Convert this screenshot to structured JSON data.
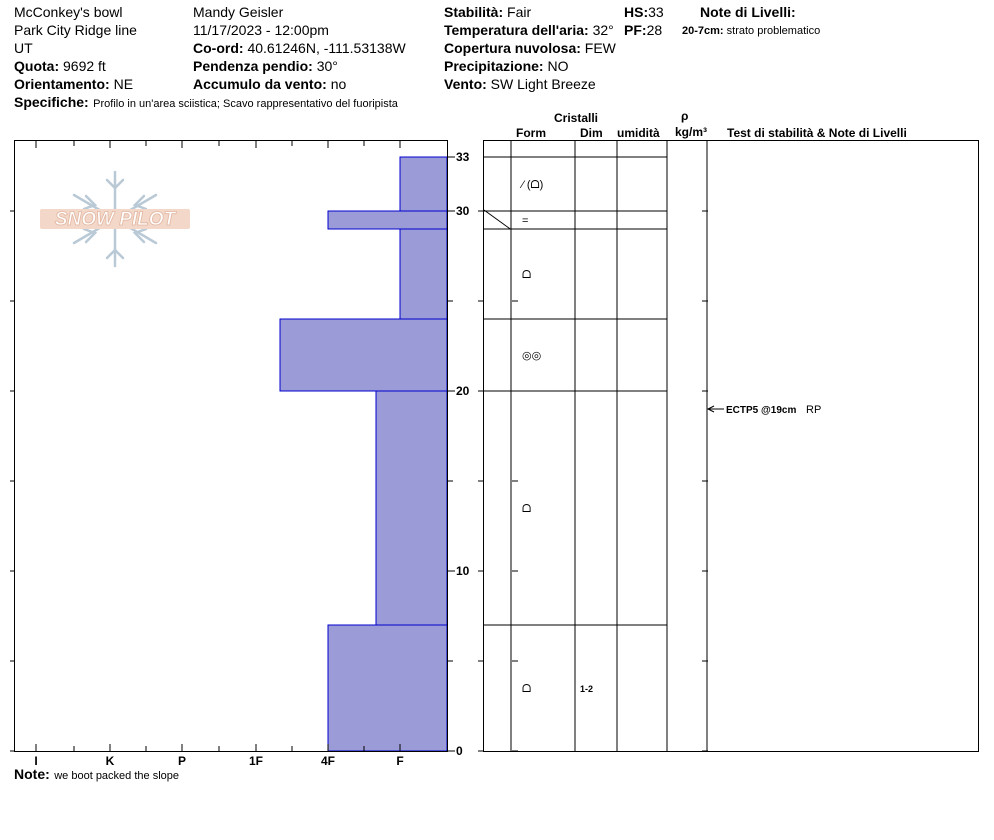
{
  "header": {
    "location": "McConkey's bowl",
    "area": "Park City Ridge line",
    "state": "UT",
    "quota_label": "Quota:",
    "quota_value": "9692 ft",
    "orientation_label": "Orientamento:",
    "orientation_value": "NE",
    "specifics_label": "Specifiche:",
    "specifics_value": "Profilo in un'area sciistica; Scavo rappresentativo del fuoripista",
    "observer": "Mandy Geisler",
    "datetime": "11/17/2023 - 12:00pm",
    "coord_label": "Co-ord:",
    "coord_value": "40.61246N, -111.53138W",
    "slope_label": "Pendenza pendio:",
    "slope_value": "30°",
    "wind_load_label": "Accumulo da vento:",
    "wind_load_value": "no",
    "stability_label": "Stabilità:",
    "stability_value": "Fair",
    "air_temp_label": "Temperatura dell'aria:",
    "air_temp_value": "32°",
    "cloud_label": "Copertura nuvolosa:",
    "cloud_value": "FEW",
    "precip_label": "Precipitazione:",
    "precip_value": "NO",
    "wind_label": "Vento:",
    "wind_value": "SW Light Breeze",
    "hs_label": "HS:",
    "hs_value": "33",
    "pf_label": "PF:",
    "pf_value": "28",
    "layer_notes_label": "Note di Livelli:",
    "layer_note_range": "20-7cm:",
    "layer_note_text": "strato problematico"
  },
  "columns": {
    "crystals": "Cristalli",
    "form": "Form",
    "size": "Dim",
    "humidity": "umidità",
    "density_symbol": "ρ",
    "density_unit": "kg/m³",
    "tests": "Test di stabilità & Note di Livelli"
  },
  "note_label": "Note:",
  "note_text": "we boot packed the slope",
  "watermark": "SNOW PILOT",
  "chart_data": {
    "type": "bar",
    "title": "",
    "ylabel": "",
    "ylim": [
      0,
      33
    ],
    "y_ticks": [
      0,
      10,
      20,
      30,
      33
    ],
    "hardness_ticks": [
      "I",
      "K",
      "P",
      "1F",
      "4F",
      "F"
    ],
    "hardness_layers": [
      {
        "bottom": 0,
        "top": 7,
        "hardness": "4F"
      },
      {
        "bottom": 7,
        "top": 20,
        "hardness": "F+"
      },
      {
        "bottom": 20,
        "top": 24,
        "hardness": "1F-"
      },
      {
        "bottom": 24,
        "top": 29,
        "hardness": "F-"
      },
      {
        "bottom": 29,
        "top": 30,
        "hardness": "4F"
      },
      {
        "bottom": 30,
        "top": 33,
        "hardness": "F-"
      }
    ],
    "layer_boundaries": [
      33,
      30,
      29,
      24,
      20,
      7,
      0
    ],
    "grain_rows": [
      {
        "top": 33,
        "bottom": 30,
        "form": "⁄ (ᗝ)",
        "size": ""
      },
      {
        "top": 30,
        "bottom": 29,
        "form": "=",
        "size": ""
      },
      {
        "top": 29,
        "bottom": 24,
        "form": "ᗝ",
        "size": ""
      },
      {
        "top": 24,
        "bottom": 20,
        "form": "◎◎",
        "size": ""
      },
      {
        "top": 20,
        "bottom": 7,
        "form": "ᗝ",
        "size": ""
      },
      {
        "top": 7,
        "bottom": 0,
        "form": "ᗝ",
        "size": "1-2"
      }
    ],
    "tests": [
      {
        "depth": 19,
        "label": "ECTP5 @19cm",
        "note": "RP"
      }
    ],
    "bar_fill": "#9b9bd7",
    "bar_stroke": "#0000cc"
  }
}
